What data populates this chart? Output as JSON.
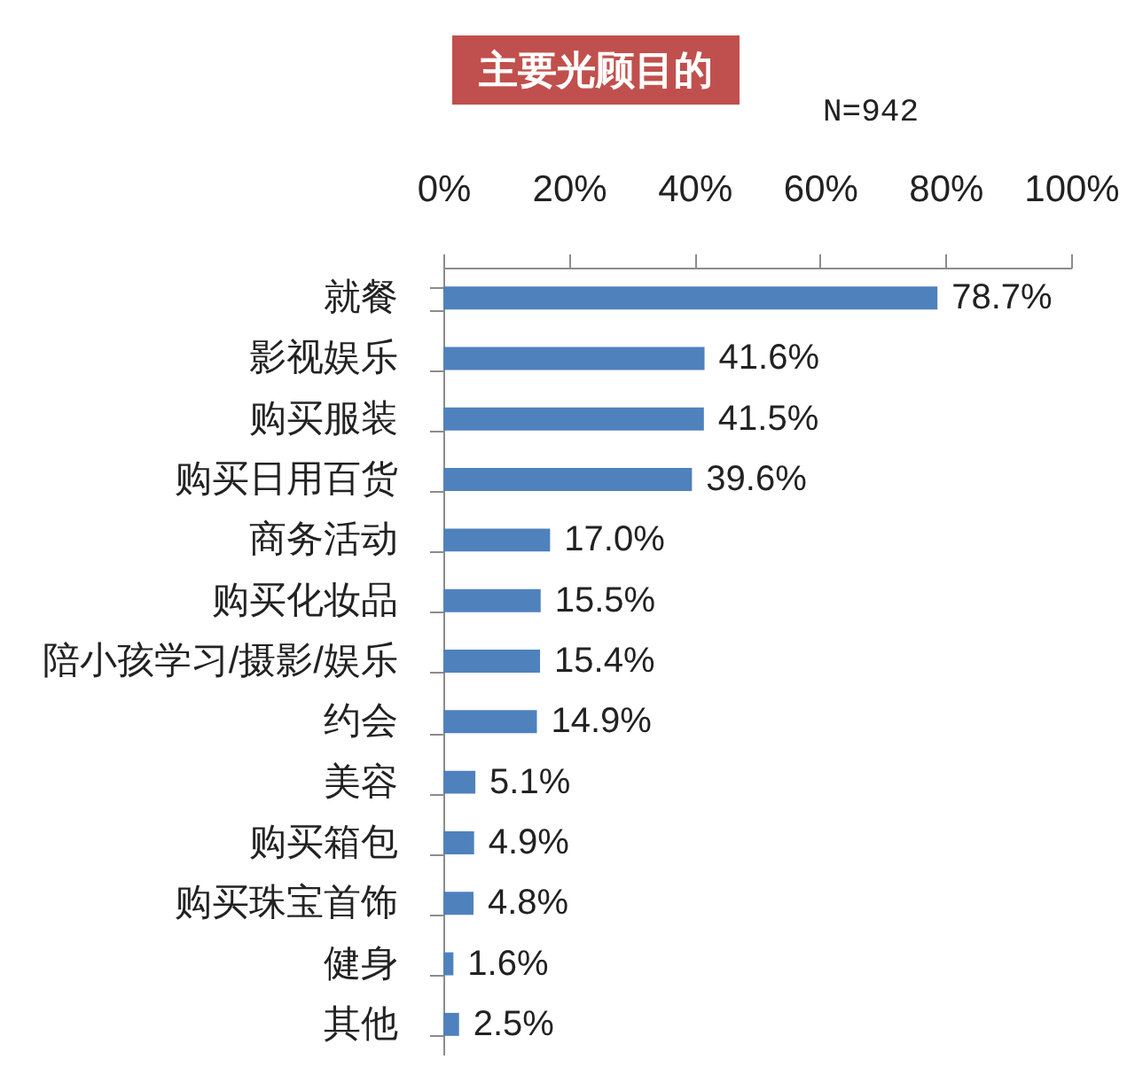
{
  "chart_data": {
    "type": "bar",
    "orientation": "horizontal",
    "title": "主要光顾目的",
    "annotations": [
      "N=942"
    ],
    "categories": [
      "就餐",
      "影视娱乐",
      "购买服装",
      "购买日用百货",
      "商务活动",
      "购买化妆品",
      "陪小孩学习/摄影/娱乐",
      "约会",
      "美容",
      "购买箱包",
      "购买珠宝首饰",
      "健身",
      "其他"
    ],
    "values": [
      78.7,
      41.6,
      41.5,
      39.6,
      17.0,
      15.5,
      15.4,
      14.9,
      5.1,
      4.9,
      4.8,
      1.6,
      2.5
    ],
    "value_labels": [
      "78.7%",
      "41.6%",
      "41.5%",
      "39.6%",
      "17.0%",
      "15.5%",
      "15.4%",
      "14.9%",
      "5.1%",
      "4.9%",
      "4.8%",
      "1.6%",
      "2.5%"
    ],
    "color": "#4f81bd",
    "xlim": [
      0,
      100
    ],
    "xticks": [
      {
        "value": 0,
        "label": "0%"
      },
      {
        "value": 20,
        "label": "20%"
      },
      {
        "value": 40,
        "label": "40%"
      },
      {
        "value": 60,
        "label": "60%"
      },
      {
        "value": 80,
        "label": "80%"
      },
      {
        "value": 100,
        "label": "100%"
      }
    ],
    "grid": false
  }
}
